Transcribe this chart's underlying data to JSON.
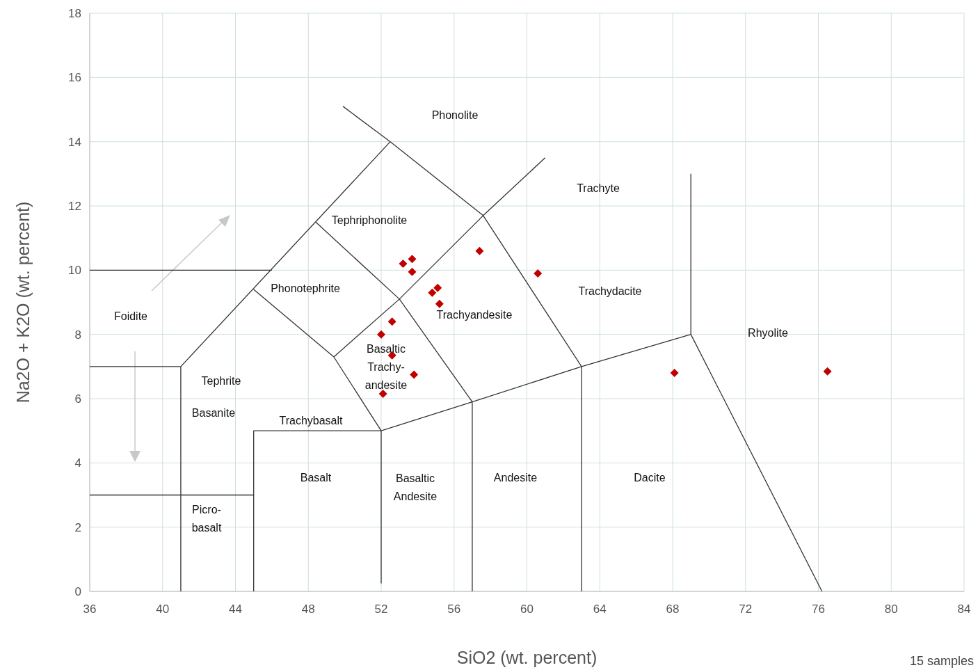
{
  "chart_data": {
    "type": "scatter",
    "xlabel": "SiO2 (wt. percent)",
    "ylabel": "Na2O + K2O (wt. percent)",
    "xlim": [
      36,
      84
    ],
    "xticks": [
      36,
      40,
      44,
      48,
      52,
      56,
      60,
      64,
      68,
      72,
      76,
      80,
      84
    ],
    "ylim": [
      0,
      18
    ],
    "yticks": [
      0,
      2,
      4,
      6,
      8,
      10,
      12,
      14,
      16,
      18
    ],
    "grid": true,
    "series": [
      {
        "color": "#c00000",
        "marker": "diamond",
        "x": [
          53.2,
          53.7,
          53.7,
          55.1,
          54.8,
          55.2,
          57.4,
          60.6,
          52.6,
          52.0,
          52.6,
          53.8,
          52.1,
          68.1,
          76.5
        ],
        "values": [
          10.2,
          10.35,
          9.95,
          9.45,
          9.3,
          8.95,
          10.6,
          9.9,
          8.4,
          8.0,
          7.35,
          6.75,
          6.15,
          6.8,
          6.85
        ]
      },
      {
        "type": "line",
        "color": "#333333",
        "marker": "none",
        "x": [
          41,
          41,
          52.5,
          null,
          49.9,
          52.5,
          57.6,
          63,
          63,
          null,
          45,
          49.4,
          52,
          52,
          null,
          45,
          45,
          52,
          null,
          48.4,
          53,
          57,
          57,
          null,
          49.4,
          53,
          57.6,
          61,
          null,
          52,
          57,
          63,
          69,
          69,
          null,
          69,
          76.2,
          null,
          36,
          46,
          null,
          36,
          41,
          null,
          36,
          45
        ],
        "values": [
          0,
          7,
          14,
          null,
          15.1,
          14,
          11.7,
          7,
          0,
          null,
          9.4,
          7.3,
          5,
          0.25,
          null,
          0,
          5,
          5,
          null,
          11.5,
          9.1,
          5.9,
          0,
          null,
          7.3,
          9.1,
          11.7,
          13.5,
          null,
          5,
          5.9,
          7,
          8,
          13,
          null,
          8,
          0,
          null,
          10,
          10,
          null,
          7,
          7,
          null,
          3,
          3
        ]
      }
    ],
    "annotations": [
      "Phonolite",
      "Trachyte",
      "Tephriphonolite",
      "Phonotephrite",
      "Trachyandesite",
      "Trachydacite",
      "Foidite",
      "Rhyolite",
      "Basaltic\nTrachy-\nandesite",
      "Tephrite",
      "Basanite",
      "Trachybasalt",
      "Basalt",
      "Basaltic\nAndesite",
      "Andesite",
      "Dacite",
      "Picro-\nbasalt",
      "15 samples"
    ]
  }
}
